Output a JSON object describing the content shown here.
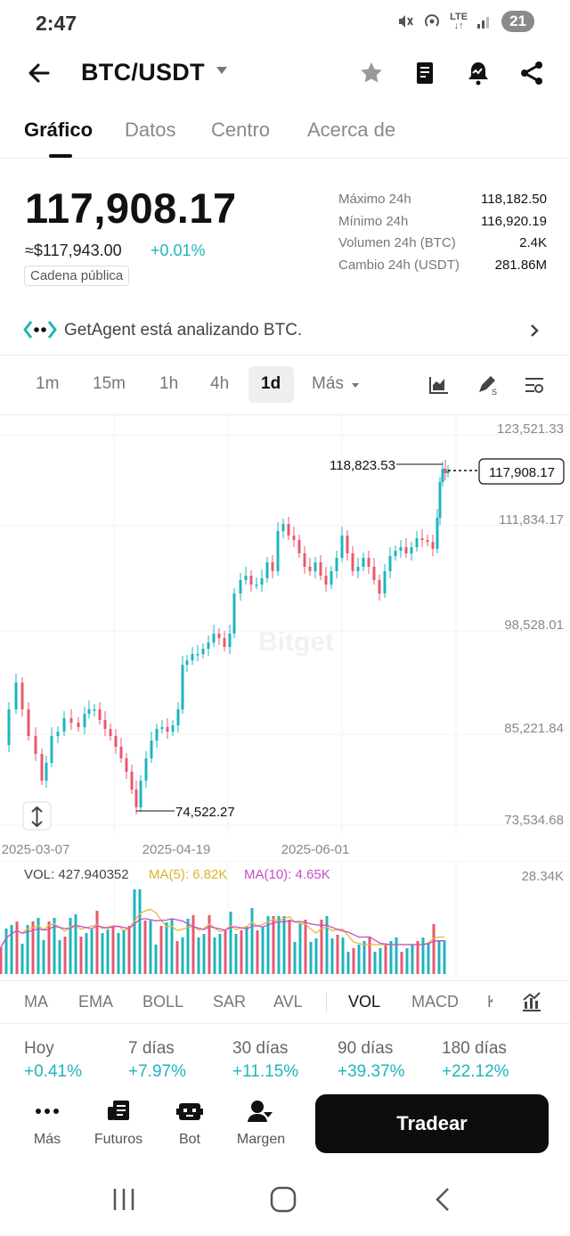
{
  "status": {
    "time": "2:47",
    "network": "LTE",
    "battery": "21"
  },
  "header": {
    "pair": "BTC/USDT"
  },
  "tabs": [
    "Gráfico",
    "Datos",
    "Centro",
    "Acerca de"
  ],
  "price": {
    "last": "117,908.17",
    "usd": "≈$117,943.00",
    "change": "+0.01%",
    "badge": "Cadena pública"
  },
  "stats": [
    {
      "label": "Máximo 24h",
      "value": "118,182.50"
    },
    {
      "label": "Mínimo 24h",
      "value": "116,920.19"
    },
    {
      "label": "Volumen 24h (BTC)",
      "value": "2.4K"
    },
    {
      "label": "Cambio 24h (USDT)",
      "value": "281.86M"
    }
  ],
  "agent": {
    "text": "GetAgent está analizando BTC."
  },
  "intervals": [
    "1m",
    "15m",
    "1h",
    "4h",
    "1d",
    "Más"
  ],
  "chart": {
    "y_labels": [
      "123,521.33",
      "111,834.17",
      "98,528.01",
      "85,221.84",
      "73,534.68"
    ],
    "x_labels": [
      "2025-03-07",
      "2025-04-19",
      "2025-06-01"
    ],
    "high_label": "118,823.53",
    "low_label": "74,522.27",
    "current_label": "117,908.17",
    "watermark": "Bitget"
  },
  "volume": {
    "vol_text": "VOL: 427.940352",
    "ma5_text": "MA(5): 6.82K",
    "ma10_text": "MA(10): 4.65K",
    "max_label": "28.34K"
  },
  "indicators": [
    "MA",
    "EMA",
    "BOLL",
    "SAR",
    "AVL",
    "VOL",
    "MACD",
    "K"
  ],
  "performance": [
    {
      "label": "Hoy",
      "value": "+0.41%"
    },
    {
      "label": "7 días",
      "value": "+7.97%"
    },
    {
      "label": "30 días",
      "value": "+11.15%"
    },
    {
      "label": "90 días",
      "value": "+39.37%"
    },
    {
      "label": "180 días",
      "value": "+22.12%"
    }
  ],
  "bottom_nav": [
    {
      "label": "Más",
      "icon": "more-dots-icon"
    },
    {
      "label": "Futuros",
      "icon": "futures-icon"
    },
    {
      "label": "Bot",
      "icon": "bot-icon"
    },
    {
      "label": "Margen",
      "icon": "margin-icon"
    }
  ],
  "trade_button": "Tradear",
  "colors": {
    "up": "#1eb5bf",
    "down": "#e8596f",
    "accent": "#0d0d0d"
  }
}
